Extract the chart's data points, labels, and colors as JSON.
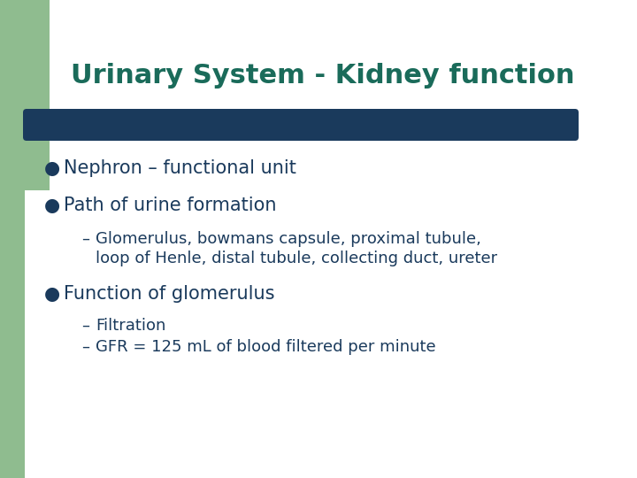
{
  "title": "Urinary System - Kidney function",
  "title_color": "#1a6b5a",
  "title_fontsize": 22,
  "background_color": "#ffffff",
  "green_color": "#8fbc8f",
  "bar_color": "#1a3a5c",
  "text_color": "#1a3a5c",
  "bullet_points": [
    "Nephron – functional unit",
    "Path of urine formation"
  ],
  "sub_bullet_1_line1": "Glomerulus, bowmans capsule, proximal tubule,",
  "sub_bullet_1_line2": "loop of Henle, distal tubule, collecting duct, ureter",
  "bullet_point_2": "Function of glomerulus",
  "sub_bullet_2": [
    "Filtration",
    "GFR = 125 mL of blood filtered per minute"
  ],
  "text_fontsize": 15,
  "sub_text_fontsize": 13
}
